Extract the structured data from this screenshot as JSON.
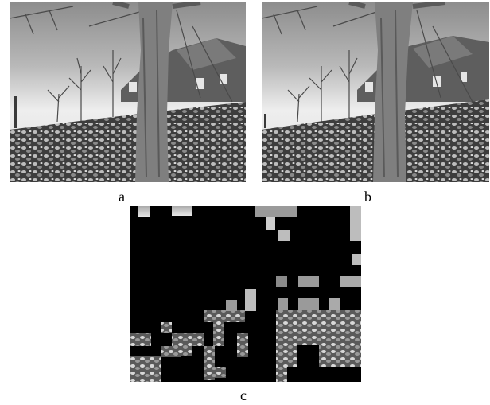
{
  "figure": {
    "panels": [
      {
        "id": "a",
        "label": "a",
        "content": "photograph-frame"
      },
      {
        "id": "b",
        "label": "b",
        "content": "photograph-frame"
      },
      {
        "id": "c",
        "label": "c",
        "content": "block-difference-map"
      }
    ],
    "colors": {
      "background": "#ffffff",
      "mask": "#000000",
      "sky": "#cfcfcf",
      "foliage": "#6a6a6a",
      "trunk": "#7f7f7f"
    }
  }
}
